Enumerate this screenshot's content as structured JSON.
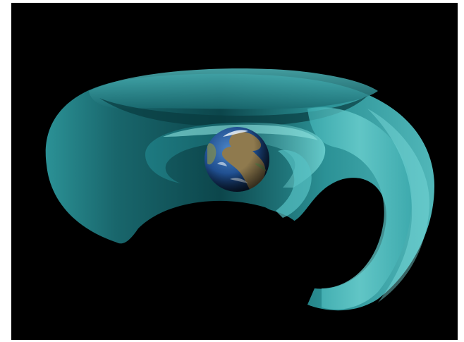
{
  "image": {
    "subject": "radiation-belts-around-earth",
    "background_color": "#000000",
    "frame_color": "#ffffff",
    "belt_colors": {
      "outer_light": "#58c7c9",
      "outer_mid": "#2f9ea3",
      "outer_dark": "#0d4c52",
      "inner_light": "#6fd3d2",
      "inner_dark": "#1f7f86"
    },
    "earth_colors": {
      "ocean": "#1f4e8f",
      "land": "#8f7a4e",
      "cloud": "#e9f1f7"
    }
  }
}
